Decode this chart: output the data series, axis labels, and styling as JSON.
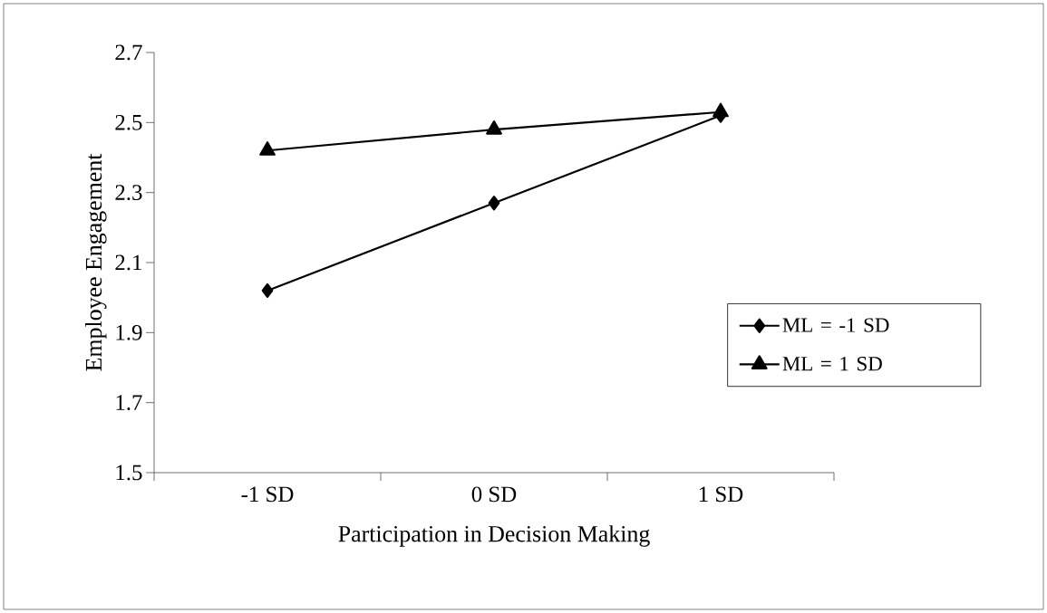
{
  "chart_data": {
    "type": "line",
    "xlabel": "Participation in Decision Making",
    "ylabel": "Employee Engagement",
    "categories": [
      "-1 SD",
      "0 SD",
      "1 SD"
    ],
    "series": [
      {
        "name": "ML = -1 SD",
        "color": "#000000",
        "marker": "diamond",
        "values": [
          2.02,
          2.27,
          2.52
        ]
      },
      {
        "name": "ML = 1 SD",
        "color": "#000000",
        "marker": "triangle",
        "values": [
          2.42,
          2.48,
          2.53
        ]
      }
    ],
    "ylim": [
      1.5,
      2.7
    ],
    "yticks": [
      1.5,
      1.7,
      1.9,
      2.1,
      2.3,
      2.5,
      2.7
    ],
    "legend": "right",
    "line_style": "solid"
  }
}
